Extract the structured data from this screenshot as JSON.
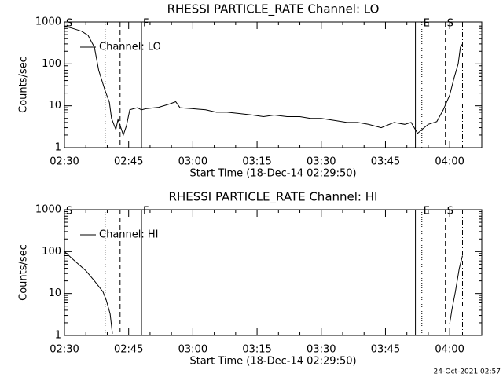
{
  "chart_data": [
    {
      "type": "line",
      "title": "RHESSI PARTICLE_RATE Channel: LO",
      "xlabel": "Start Time (18-Dec-14 02:29:50)",
      "ylabel": "Counts/sec",
      "xlim": [
        "02:30",
        "04:07:30"
      ],
      "xticks": [
        "02:30",
        "02:45",
        "03:00",
        "03:15",
        "03:30",
        "03:45",
        "04:00"
      ],
      "ylim": [
        1,
        1000
      ],
      "yticks": [
        1,
        10,
        100,
        1000
      ],
      "log_y": true,
      "legend": "upper left",
      "x": [
        "02:30",
        "02:32",
        "02:34",
        "02:35:30",
        "02:37",
        "02:38",
        "02:39:30",
        "02:40:30",
        "02:41",
        "02:42",
        "02:42:30",
        "02:43",
        "02:43:45",
        "02:44:30",
        "02:45:15",
        "02:46:10",
        "02:47",
        "02:48",
        "02:49",
        "02:52",
        "02:54:30",
        "02:56",
        "02:57",
        "03:00",
        "03:03",
        "03:05:30",
        "03:08",
        "03:11",
        "03:14",
        "03:16:30",
        "03:19",
        "03:22",
        "03:25",
        "03:27:30",
        "03:30",
        "03:33",
        "03:36",
        "03:38:30",
        "03:41",
        "03:44",
        "03:47",
        "03:49:30",
        "03:51",
        "03:52:30",
        "03:53:30",
        "03:55",
        "03:57",
        "03:58:30",
        "04:00",
        "04:01",
        "04:02",
        "04:02:30",
        "04:03"
      ],
      "series": [
        {
          "name": "Channel: LO",
          "color": "#000000",
          "values": [
            800,
            700,
            600,
            480,
            250,
            70,
            23,
            12,
            5,
            2.7,
            4.7,
            3.4,
            2,
            3.4,
            8,
            8.5,
            9,
            8,
            8.5,
            9.2,
            11,
            12.5,
            9,
            8.5,
            8,
            7,
            7,
            6.5,
            6,
            5.5,
            6,
            5.5,
            5.5,
            5,
            5,
            4.5,
            4,
            4,
            3.6,
            3,
            4,
            3.6,
            4,
            2.2,
            2.7,
            3.6,
            4.2,
            8,
            18,
            45,
            100,
            250,
            300
          ]
        }
      ],
      "markers": [
        {
          "x": "02:39:30",
          "style": "dotted"
        },
        {
          "x": "02:43",
          "style": "dashed"
        },
        {
          "x": "02:48",
          "style": "solid"
        },
        {
          "x": "03:52",
          "style": "solid"
        },
        {
          "x": "03:53:30",
          "style": "dotted"
        },
        {
          "x": "03:59",
          "style": "dashed"
        },
        {
          "x": "04:03",
          "style": "dashdot"
        }
      ],
      "annotations": [
        {
          "text": "S",
          "x": "02:30"
        },
        {
          "text": "F",
          "x": "02:48"
        },
        {
          "text": "E",
          "x": "03:53:30"
        },
        {
          "text": "S",
          "x": "03:59"
        }
      ]
    },
    {
      "type": "line",
      "title": "RHESSI PARTICLE_RATE Channel: HI",
      "xlabel": "Start Time (18-Dec-14 02:29:50)",
      "ylabel": "Counts/sec",
      "xlim": [
        "02:30",
        "04:07:30"
      ],
      "xticks": [
        "02:30",
        "02:45",
        "03:00",
        "03:15",
        "03:30",
        "03:45",
        "04:00"
      ],
      "ylim": [
        1,
        1000
      ],
      "yticks": [
        1,
        10,
        100,
        1000
      ],
      "log_y": true,
      "legend": "upper left",
      "x": [
        "02:30",
        "02:32",
        "02:35",
        "02:37",
        "02:39",
        "02:39:45",
        "02:40:40",
        "02:41:12",
        "03:20",
        "04:00",
        "04:00:30",
        "04:01:20",
        "04:02:15",
        "04:03"
      ],
      "series": [
        {
          "name": "Channel: HI",
          "color": "#000000",
          "values": [
            100,
            65,
            35,
            20,
            11,
            7,
            3.3,
            1.1,
            null,
            1.9,
            4,
            11,
            40,
            80
          ]
        }
      ],
      "markers": [
        {
          "x": "02:39:30",
          "style": "dotted"
        },
        {
          "x": "02:43",
          "style": "dashed"
        },
        {
          "x": "02:48",
          "style": "solid"
        },
        {
          "x": "03:52",
          "style": "solid"
        },
        {
          "x": "03:53:30",
          "style": "dotted"
        },
        {
          "x": "03:59",
          "style": "dashed"
        },
        {
          "x": "04:03",
          "style": "dashdot"
        }
      ],
      "annotations": [
        {
          "text": "S",
          "x": "02:30"
        },
        {
          "text": "F",
          "x": "02:48"
        },
        {
          "text": "E",
          "x": "03:53:30"
        },
        {
          "text": "S",
          "x": "03:59"
        }
      ]
    }
  ],
  "footer": "24-Oct-2021 02:57"
}
